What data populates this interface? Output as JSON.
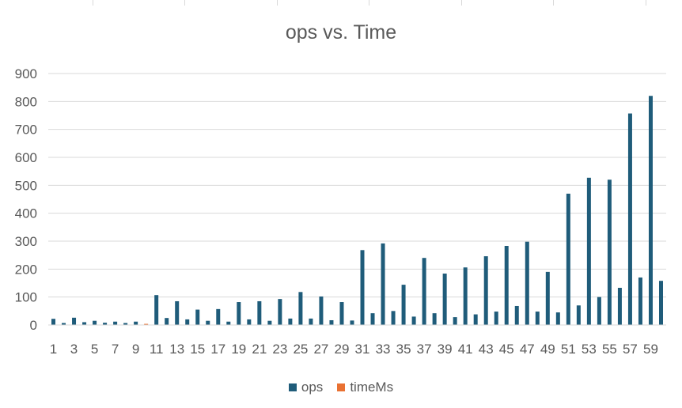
{
  "chart_data": {
    "type": "bar",
    "title": "ops vs. Time",
    "xlabel": "",
    "ylabel": "",
    "ylim": [
      0,
      900
    ],
    "yticks": [
      0,
      100,
      200,
      300,
      400,
      500,
      600,
      700,
      800,
      900
    ],
    "grid": true,
    "legend_position": "bottom",
    "categories": [
      1,
      2,
      3,
      4,
      5,
      6,
      7,
      8,
      9,
      10,
      11,
      12,
      13,
      14,
      15,
      16,
      17,
      18,
      19,
      20,
      21,
      22,
      23,
      24,
      25,
      26,
      27,
      28,
      29,
      30,
      31,
      32,
      33,
      34,
      35,
      36,
      37,
      38,
      39,
      40,
      41,
      42,
      43,
      44,
      45,
      46,
      47,
      48,
      49,
      50,
      51,
      52,
      53,
      54,
      55,
      56,
      57,
      58,
      59,
      60
    ],
    "x_tick_labels": [
      "1",
      "3",
      "5",
      "7",
      "9",
      "11",
      "13",
      "15",
      "17",
      "19",
      "21",
      "23",
      "25",
      "27",
      "29",
      "31",
      "33",
      "35",
      "37",
      "39",
      "41",
      "43",
      "45",
      "47",
      "49",
      "51",
      "53",
      "55",
      "57",
      "59"
    ],
    "series": [
      {
        "name": "ops",
        "color": "#1f5c7a",
        "values": [
          22,
          7,
          26,
          10,
          15,
          8,
          12,
          7,
          12,
          0,
          107,
          25,
          85,
          20,
          55,
          15,
          57,
          12,
          82,
          20,
          85,
          15,
          93,
          23,
          118,
          23,
          102,
          17,
          82,
          16,
          268,
          42,
          292,
          50,
          144,
          30,
          240,
          42,
          184,
          28,
          206,
          38,
          246,
          48,
          283,
          68,
          298,
          48,
          190,
          45,
          470,
          70,
          527,
          100,
          520,
          133,
          757,
          170,
          820,
          158
        ]
      },
      {
        "name": "timeMs",
        "color": "#e97132",
        "values": [
          0,
          0,
          0,
          0,
          0,
          0,
          0,
          0,
          0,
          4,
          0,
          0,
          0,
          0,
          0,
          0,
          0,
          0,
          0,
          0,
          0,
          0,
          0,
          0,
          0,
          0,
          0,
          0,
          0,
          0,
          0,
          0,
          0,
          0,
          0,
          0,
          0,
          0,
          0,
          0,
          0,
          0,
          0,
          0,
          0,
          0,
          0,
          0,
          0,
          0,
          0,
          0,
          0,
          0,
          0,
          0,
          0,
          0,
          0,
          0
        ]
      }
    ]
  }
}
